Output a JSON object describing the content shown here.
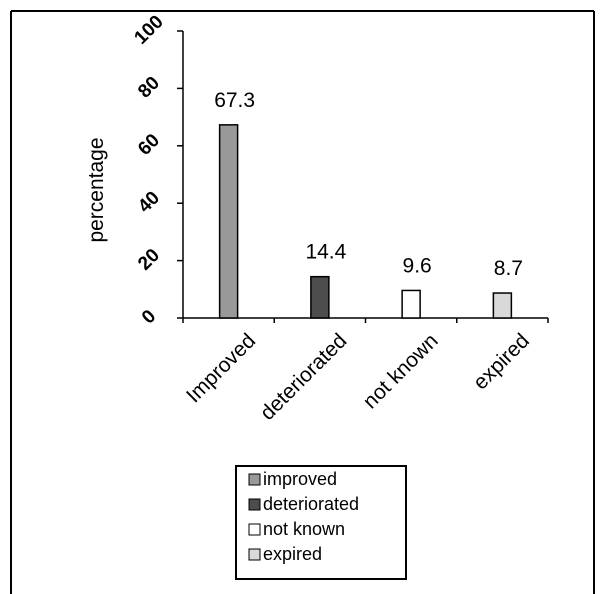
{
  "chart_data": {
    "type": "bar",
    "title": "",
    "xlabel": "",
    "ylabel": "percentage",
    "ylim": [
      0,
      100
    ],
    "yticks": [
      0,
      20,
      40,
      60,
      80,
      100
    ],
    "categories": [
      "Improved",
      "deteriorated",
      "not known",
      "expired"
    ],
    "values": [
      67.3,
      14.4,
      9.6,
      8.7
    ],
    "data_labels": [
      "67.3",
      "14.4",
      "9.6",
      "8.7"
    ],
    "bar_colors": [
      "#999999",
      "#4d4d4d",
      "#ffffff",
      "#d9d9d9"
    ],
    "grid": false,
    "legend": {
      "placement": "bottom-center",
      "entries": [
        "improved",
        "deteriorated",
        "not known",
        "expired"
      ]
    }
  }
}
